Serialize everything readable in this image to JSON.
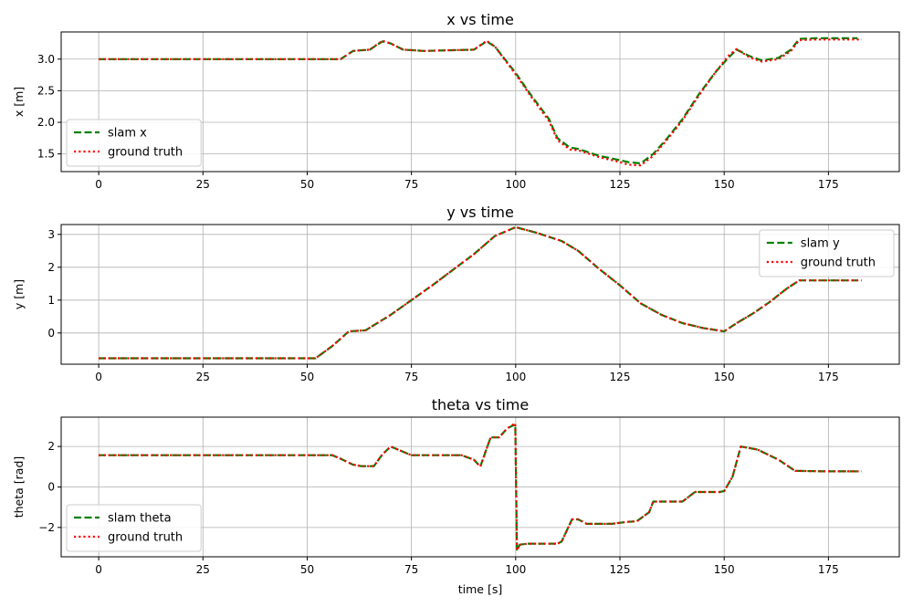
{
  "figure": {
    "xlabel": "time [s]"
  },
  "chart_data": [
    {
      "type": "line",
      "title": "x vs time",
      "xlabel": "",
      "ylabel": "x [m]",
      "xlim": [
        -9,
        192
      ],
      "ylim": [
        1.22,
        3.43
      ],
      "xticks": [
        0,
        25,
        50,
        75,
        100,
        125,
        150,
        175
      ],
      "yticks": [
        1.5,
        2.0,
        2.5,
        3.0
      ],
      "yticklabels": [
        "1.5",
        "2.0",
        "2.5",
        "3.0"
      ],
      "grid": true,
      "legend_position": "lower-left",
      "series": [
        {
          "name": "slam x",
          "color": "#008000",
          "dash": "dashed",
          "x": [
            0,
            58,
            61,
            65,
            68,
            70,
            73,
            78,
            90,
            93,
            95,
            100,
            104,
            108,
            110,
            113,
            115,
            120,
            125,
            127,
            130,
            133,
            136,
            140,
            144,
            148,
            151,
            153,
            156,
            159,
            163,
            166,
            168,
            172,
            176,
            182
          ],
          "y": [
            3.0,
            3.0,
            3.13,
            3.15,
            3.28,
            3.25,
            3.15,
            3.13,
            3.15,
            3.28,
            3.2,
            2.78,
            2.4,
            2.05,
            1.75,
            1.6,
            1.58,
            1.47,
            1.4,
            1.37,
            1.35,
            1.5,
            1.72,
            2.05,
            2.45,
            2.8,
            3.02,
            3.15,
            3.05,
            2.98,
            3.02,
            3.15,
            3.32,
            3.33,
            3.33,
            3.33
          ]
        },
        {
          "name": "ground truth",
          "color": "#ff0000",
          "dash": "dotted",
          "x": [
            0,
            58,
            61,
            65,
            68,
            70,
            73,
            78,
            90,
            93,
            95,
            100,
            104,
            108,
            110,
            113,
            115,
            120,
            125,
            127,
            130,
            133,
            136,
            140,
            144,
            148,
            151,
            153,
            156,
            159,
            163,
            166,
            168,
            172,
            176,
            183
          ],
          "y": [
            3.0,
            3.0,
            3.13,
            3.15,
            3.29,
            3.25,
            3.15,
            3.13,
            3.15,
            3.29,
            3.2,
            2.76,
            2.38,
            2.02,
            1.72,
            1.57,
            1.56,
            1.45,
            1.37,
            1.33,
            1.32,
            1.47,
            1.7,
            2.03,
            2.43,
            2.8,
            3.05,
            3.16,
            3.03,
            2.96,
            3.0,
            3.13,
            3.3,
            3.31,
            3.31,
            3.31
          ]
        }
      ]
    },
    {
      "type": "line",
      "title": "y vs time",
      "xlabel": "",
      "ylabel": "y [m]",
      "xlim": [
        -9,
        192
      ],
      "ylim": [
        -0.95,
        3.3
      ],
      "xticks": [
        0,
        25,
        50,
        75,
        100,
        125,
        150,
        175
      ],
      "yticks": [
        0,
        1,
        2,
        3
      ],
      "yticklabels": [
        "0",
        "1",
        "2",
        "3"
      ],
      "grid": true,
      "legend_position": "upper-right",
      "series": [
        {
          "name": "slam y",
          "color": "#008000",
          "dash": "dashed",
          "x": [
            0,
            52,
            56,
            60,
            64,
            70,
            80,
            90,
            95,
            100,
            105,
            111,
            115,
            120,
            125,
            130,
            135,
            140,
            145,
            150,
            153,
            157,
            161,
            165,
            168,
            175,
            182
          ],
          "y": [
            -0.77,
            -0.77,
            -0.4,
            0.05,
            0.08,
            0.55,
            1.45,
            2.4,
            2.95,
            3.22,
            3.05,
            2.8,
            2.5,
            1.95,
            1.45,
            0.9,
            0.55,
            0.3,
            0.15,
            0.05,
            0.3,
            0.6,
            0.95,
            1.35,
            1.6,
            1.6,
            1.6
          ]
        },
        {
          "name": "ground truth",
          "color": "#ff0000",
          "dash": "dotted",
          "x": [
            0,
            52,
            56,
            60,
            64,
            70,
            80,
            90,
            95,
            100,
            105,
            111,
            115,
            120,
            125,
            130,
            135,
            140,
            145,
            150,
            153,
            157,
            161,
            165,
            168,
            175,
            183
          ],
          "y": [
            -0.77,
            -0.77,
            -0.4,
            0.05,
            0.08,
            0.55,
            1.45,
            2.4,
            2.95,
            3.22,
            3.05,
            2.8,
            2.5,
            1.95,
            1.45,
            0.9,
            0.55,
            0.3,
            0.15,
            0.05,
            0.3,
            0.6,
            0.95,
            1.35,
            1.6,
            1.6,
            1.6
          ]
        }
      ]
    },
    {
      "type": "line",
      "title": "theta vs time",
      "xlabel": "time [s]",
      "ylabel": "theta [rad]",
      "xlim": [
        -9,
        192
      ],
      "ylim": [
        -3.45,
        3.45
      ],
      "xticks": [
        0,
        25,
        50,
        75,
        100,
        125,
        150,
        175
      ],
      "yticks": [
        -2,
        0,
        2
      ],
      "yticklabels": [
        "−2",
        "0",
        "2"
      ],
      "grid": true,
      "legend_position": "lower-left",
      "series": [
        {
          "name": "slam theta",
          "color": "#008000",
          "dash": "dashed",
          "x": [
            0,
            56,
            58,
            61,
            63,
            66,
            68,
            70,
            75,
            87,
            90,
            91.5,
            94,
            96,
            98,
            99.5,
            99.9,
            100.3,
            101,
            103,
            110,
            111,
            113.5,
            115,
            117,
            123,
            127,
            129,
            132,
            133,
            138,
            140,
            143,
            149,
            150,
            152,
            154,
            158,
            163,
            167,
            174,
            182
          ],
          "y": [
            1.57,
            1.57,
            1.4,
            1.1,
            1.03,
            1.03,
            1.6,
            2.0,
            1.57,
            1.57,
            1.35,
            1.0,
            2.45,
            2.45,
            2.9,
            3.05,
            3.1,
            -3.1,
            -2.85,
            -2.8,
            -2.8,
            -2.7,
            -1.6,
            -1.6,
            -1.82,
            -1.82,
            -1.72,
            -1.7,
            -1.25,
            -0.72,
            -0.72,
            -0.72,
            -0.25,
            -0.25,
            -0.2,
            0.5,
            2.0,
            1.85,
            1.35,
            0.8,
            0.77,
            0.77
          ]
        },
        {
          "name": "ground truth",
          "color": "#ff0000",
          "dash": "dotted",
          "x": [
            0,
            56,
            58,
            61,
            63,
            66,
            68,
            70,
            75,
            87,
            90,
            91.5,
            94,
            96,
            98,
            99.5,
            99.9,
            100.3,
            101,
            103,
            110,
            111,
            113.5,
            115,
            117,
            123,
            127,
            129,
            132,
            133,
            138,
            140,
            143,
            149,
            150,
            152,
            154,
            158,
            163,
            167,
            174,
            183
          ],
          "y": [
            1.57,
            1.57,
            1.4,
            1.1,
            1.03,
            1.03,
            1.6,
            2.0,
            1.57,
            1.57,
            1.35,
            1.0,
            2.45,
            2.45,
            2.9,
            3.1,
            3.14,
            -3.14,
            -2.85,
            -2.8,
            -2.8,
            -2.7,
            -1.6,
            -1.6,
            -1.82,
            -1.82,
            -1.72,
            -1.7,
            -1.25,
            -0.72,
            -0.72,
            -0.72,
            -0.25,
            -0.25,
            -0.2,
            0.5,
            2.0,
            1.85,
            1.35,
            0.8,
            0.77,
            0.77
          ]
        }
      ]
    }
  ]
}
